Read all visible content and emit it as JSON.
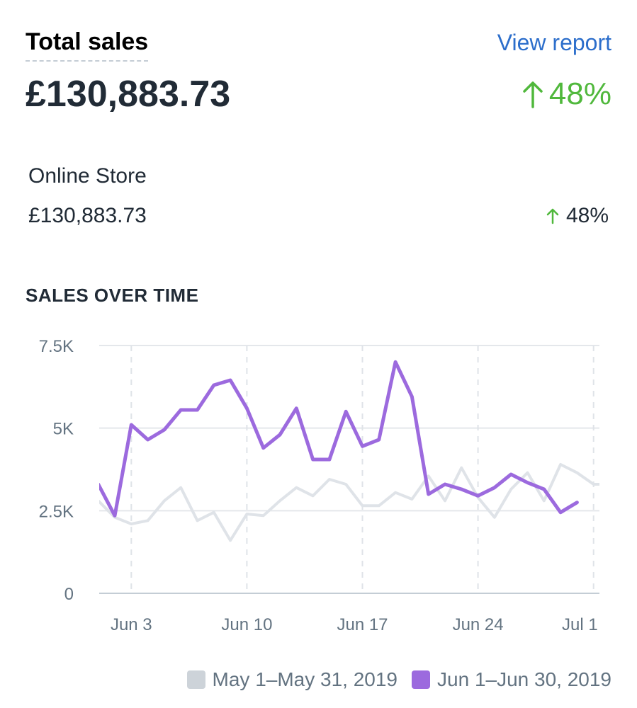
{
  "header": {
    "title": "Total sales",
    "view_report_label": "View report",
    "total_value": "£130,883.73",
    "change": "48%",
    "change_icon": "arrow-up-icon"
  },
  "breakdown": {
    "label": "Online Store",
    "value": "£130,883.73",
    "change": "48%",
    "change_icon": "arrow-up-icon"
  },
  "section_title": "SALES OVER TIME",
  "colors": {
    "current": "#9c6ade",
    "previous": "#dfe3e8",
    "positive": "#50b83c",
    "link": "#2c6ecb"
  },
  "chart_data": {
    "type": "line",
    "title": "",
    "xlabel": "",
    "ylabel": "",
    "ylim": [
      0,
      7500
    ],
    "yticks": [
      {
        "value": 0,
        "label": "0"
      },
      {
        "value": 2500,
        "label": "2.5K"
      },
      {
        "value": 5000,
        "label": "5K"
      },
      {
        "value": 7500,
        "label": "7.5K"
      }
    ],
    "xticks": [
      {
        "day": 3,
        "label": "Jun 3"
      },
      {
        "day": 10,
        "label": "Jun 10"
      },
      {
        "day": 17,
        "label": "Jun 17"
      },
      {
        "day": 24,
        "label": "Jun 24"
      },
      {
        "day": 31,
        "label": "Jul 1"
      }
    ],
    "grid": true,
    "legend_position": "bottom-right",
    "series": [
      {
        "name": "May 1–May 31, 2019",
        "color": "#dfe3e8",
        "x": [
          1,
          2,
          3,
          4,
          5,
          6,
          7,
          8,
          9,
          10,
          11,
          12,
          13,
          14,
          15,
          16,
          17,
          18,
          19,
          20,
          21,
          22,
          23,
          24,
          25,
          26,
          27,
          28,
          29,
          30,
          31,
          32
        ],
        "values": [
          2800,
          2300,
          2100,
          2200,
          2800,
          3200,
          2200,
          2450,
          1600,
          2400,
          2350,
          2800,
          3200,
          2950,
          3450,
          3300,
          2650,
          2650,
          3050,
          2850,
          3550,
          2800,
          3800,
          2900,
          2300,
          3150,
          3650,
          2800,
          3900,
          3650,
          3300,
          3300
        ]
      },
      {
        "name": "Jun 1–Jun 30, 2019",
        "color": "#9c6ade",
        "x": [
          1,
          2,
          3,
          4,
          5,
          6,
          7,
          8,
          9,
          10,
          11,
          12,
          13,
          14,
          15,
          16,
          17,
          18,
          19,
          20,
          21,
          22,
          23,
          24,
          25,
          26,
          27,
          28,
          29,
          30
        ],
        "values": [
          3300,
          2350,
          5100,
          4650,
          4950,
          5550,
          5550,
          6300,
          6450,
          5600,
          4400,
          4800,
          5600,
          4050,
          4050,
          5500,
          4450,
          4650,
          7000,
          5950,
          3000,
          3300,
          3150,
          2950,
          3200,
          3600,
          3350,
          3150,
          2450,
          2750
        ]
      }
    ]
  }
}
